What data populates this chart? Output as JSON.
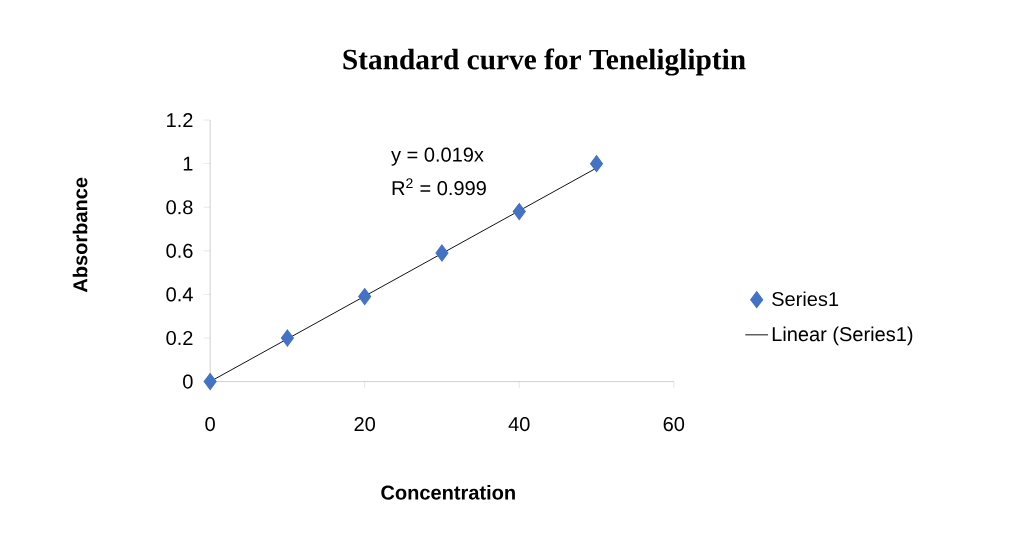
{
  "chart_data": {
    "type": "scatter",
    "title": "Standard curve for Teneligliptin",
    "xlabel": "Concentration",
    "ylabel": "Absorbance",
    "x": [
      0,
      10,
      20,
      30,
      40,
      50
    ],
    "series": [
      {
        "name": "Series1",
        "color": "#4472c4",
        "marker": "diamond",
        "values": [
          0,
          0.2,
          0.39,
          0.59,
          0.78,
          1.0
        ]
      },
      {
        "name": "Linear (Series1)",
        "type": "line",
        "color": "#000000",
        "marker": "none",
        "x": [
          0,
          50
        ],
        "values": [
          0,
          0.98
        ]
      }
    ],
    "xlim": [
      0,
      60
    ],
    "ylim": [
      0,
      1.2
    ],
    "xticks": [
      0,
      20,
      40,
      60
    ],
    "yticks": [
      0,
      0.2,
      0.4,
      0.6,
      0.8,
      1,
      1.2
    ],
    "annotations": [
      "y = 0.019x",
      "R$^{2}$ = 0.999"
    ],
    "legend": "right",
    "grid": false
  }
}
